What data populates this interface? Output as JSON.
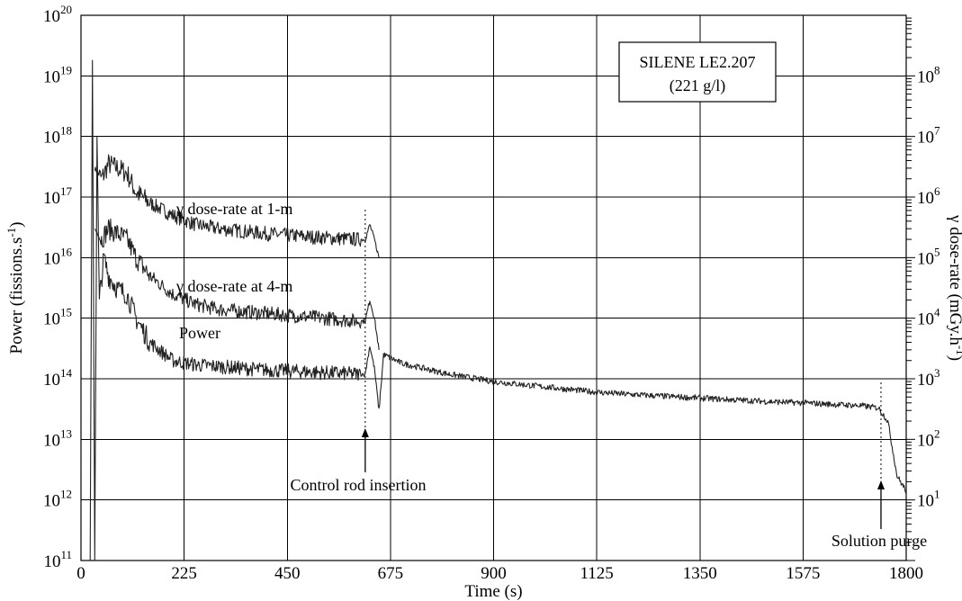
{
  "chart_data": {
    "type": "line",
    "title": "",
    "annotation_box": {
      "line1": "SILENE LE2.207",
      "line2": "(221 g/l)"
    },
    "xlabel": "Time (s)",
    "ylabel_left": "Power (fissions.s⁻¹)",
    "ylabel_right": "γ dose-rate (mGy.h⁻¹)",
    "xlim": [
      0,
      1800
    ],
    "x_ticks": [
      0,
      225,
      450,
      675,
      900,
      1125,
      1350,
      1575,
      1800
    ],
    "y_left_scale": "log",
    "y_left_lim": [
      100000000000.0,
      1e+20
    ],
    "y_left_tick_exponents": [
      "11",
      "12",
      "13",
      "14",
      "15",
      "16",
      "17",
      "18",
      "19",
      "20"
    ],
    "y_right_scale": "log",
    "y_right_lim": [
      1.0,
      1000000000.0
    ],
    "y_right_tick_exponents": [
      "1",
      "2",
      "3",
      "4",
      "5",
      "6",
      "7",
      "8"
    ],
    "grid": true,
    "series": [
      {
        "name": "γ dose-rate at 1-m",
        "x": [
          30,
          45,
          60,
          80,
          100,
          120,
          150,
          200,
          250,
          300,
          400,
          500,
          600,
          620,
          630,
          640,
          650
        ],
        "y": [
          3e+17,
          2e+17,
          3.5e+17,
          3e+17,
          2.5e+17,
          1.2e+17,
          8e+16,
          5e+16,
          3.5e+16,
          3e+16,
          2.5e+16,
          2.2e+16,
          2e+16,
          2e+16,
          3.5e+16,
          2e+16,
          1e+16
        ]
      },
      {
        "name": "γ dose-rate at 4-m",
        "x": [
          30,
          45,
          60,
          80,
          100,
          120,
          150,
          200,
          250,
          300,
          400,
          500,
          600,
          620,
          630,
          640,
          650
        ],
        "y": [
          3e+16,
          2e+16,
          3e+16,
          2.5e+16,
          2e+16,
          1e+16,
          5000000000000000.0,
          2500000000000000.0,
          1700000000000000.0,
          1400000000000000.0,
          1200000000000000.0,
          1050000000000000.0,
          900000000000000.0,
          900000000000000.0,
          2000000000000000.0,
          1000000000000000.0,
          300000000000000.0
        ]
      },
      {
        "name": "Power",
        "x": [
          20,
          25,
          30,
          35,
          40,
          50,
          60,
          80,
          100,
          120,
          150,
          200,
          250,
          300,
          400,
          500,
          600,
          620,
          630,
          640,
          650,
          660,
          700,
          800,
          900,
          1000,
          1125,
          1200,
          1350,
          1500,
          1575,
          1700,
          1740,
          1760,
          1780,
          1800
        ],
        "y": [
          100000000000.0,
          1.8e+19,
          100000000000.0,
          1e+18,
          2000000000000000.0,
          1e+16,
          5000000000000000.0,
          3000000000000000.0,
          2500000000000000.0,
          1000000000000000.0,
          400000000000000.0,
          200000000000000.0,
          170000000000000.0,
          160000000000000.0,
          140000000000000.0,
          130000000000000.0,
          120000000000000.0,
          120000000000000.0,
          350000000000000.0,
          150000000000000.0,
          30000000000000.0,
          250000000000000.0,
          180000000000000.0,
          120000000000000.0,
          90000000000000.0,
          75000000000000.0,
          60000000000000.0,
          55000000000000.0,
          48000000000000.0,
          42000000000000.0,
          40000000000000.0,
          36000000000000.0,
          33000000000000.0,
          20000000000000.0,
          2500000000000.0,
          1400000000000.0
        ]
      }
    ],
    "annotations": [
      {
        "text": "Control rod insertion",
        "x": 620
      },
      {
        "text": "Solution purge",
        "x": 1745
      }
    ]
  }
}
